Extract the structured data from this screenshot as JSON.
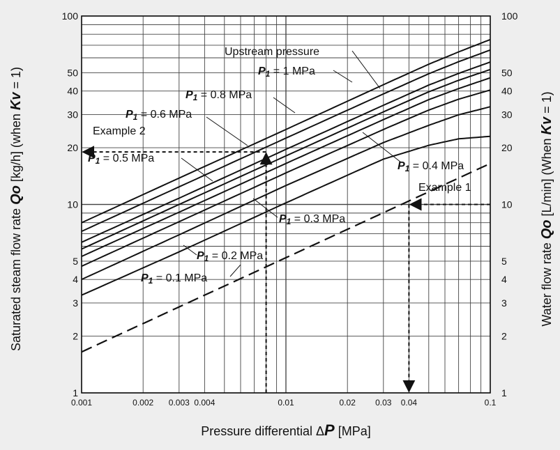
{
  "chart_data": {
    "type": "line",
    "xscale": "log",
    "yscale": "log",
    "xlim": [
      0.001,
      0.1
    ],
    "ylim": [
      1,
      100
    ],
    "grid": true,
    "x_ticks": [
      "0.001",
      "0.002",
      "0.003",
      "0.004",
      "0.01",
      "0.02",
      "0.03",
      "0.04",
      "0.1"
    ],
    "x_tick_values": [
      0.001,
      0.002,
      0.003,
      0.004,
      0.01,
      0.02,
      0.03,
      0.04,
      0.1
    ],
    "y_ticks": [
      "1",
      "2",
      "3",
      "4",
      "5",
      "10",
      "20",
      "30",
      "40",
      "50",
      "100"
    ],
    "y_tick_values": [
      1,
      2,
      3,
      4,
      5,
      10,
      20,
      30,
      40,
      50,
      100
    ],
    "xlabel": {
      "pre": "Pressure differential ",
      "delta": "Δ",
      "sym": "P",
      "post": " [MPa]"
    },
    "ylabel_left": {
      "pre": "Saturated steam flow rate ",
      "sym": "Qo",
      "mid": " [kg/h] (when ",
      "sym2": "Kv",
      "post": " = 1)"
    },
    "ylabel_right": {
      "pre": "Water flow rate ",
      "sym": "Qo",
      "mid": " [L/min] (When ",
      "sym2": "Kv",
      "post": " = 1)"
    },
    "series": [
      {
        "name": "P1 = 0.1 MPa",
        "style": "solid",
        "x": [
          0.001,
          0.003,
          0.01,
          0.02,
          0.03,
          0.05,
          0.07,
          0.1
        ],
        "y": [
          3.3,
          5.6,
          10.2,
          14.3,
          17.4,
          20.6,
          22.3,
          23.0
        ]
      },
      {
        "name": "P1 = 0.2 MPa",
        "style": "solid",
        "x": [
          0.001,
          0.003,
          0.01,
          0.03,
          0.05,
          0.07,
          0.1
        ],
        "y": [
          4.0,
          6.9,
          12.6,
          21.3,
          26.3,
          29.9,
          33.0
        ]
      },
      {
        "name": "P1 = 0.3 MPa",
        "style": "solid",
        "x": [
          0.001,
          0.003,
          0.01,
          0.03,
          0.05,
          0.07,
          0.1
        ],
        "y": [
          4.7,
          8.1,
          14.7,
          25.0,
          31.7,
          36.2,
          40.5
        ]
      },
      {
        "name": "P1 = 0.4 MPa",
        "style": "solid",
        "x": [
          0.001,
          0.003,
          0.01,
          0.03,
          0.05,
          0.07,
          0.1
        ],
        "y": [
          5.3,
          9.1,
          16.5,
          28.2,
          36.0,
          41.2,
          47.0
        ]
      },
      {
        "name": "P1 = 0.5 MPa",
        "style": "solid",
        "x": [
          0.001,
          0.003,
          0.01,
          0.03,
          0.05,
          0.07,
          0.1
        ],
        "y": [
          5.8,
          10.0,
          18.1,
          31.0,
          39.6,
          45.6,
          52.0
        ]
      },
      {
        "name": "P1 = 0.6 MPa",
        "style": "solid",
        "x": [
          0.001,
          0.003,
          0.01,
          0.03,
          0.05,
          0.07,
          0.1
        ],
        "y": [
          6.3,
          10.8,
          19.6,
          33.6,
          43.0,
          49.6,
          57.0
        ]
      },
      {
        "name": "P1 = 0.8 MPa",
        "style": "solid",
        "x": [
          0.001,
          0.003,
          0.01,
          0.03,
          0.05,
          0.07,
          0.1
        ],
        "y": [
          7.2,
          12.4,
          22.5,
          38.6,
          49.4,
          57.2,
          66.0
        ]
      },
      {
        "name": "P1 = 1 MPa",
        "style": "solid",
        "x": [
          0.001,
          0.003,
          0.01,
          0.03,
          0.05,
          0.07,
          0.1
        ],
        "y": [
          8.0,
          13.8,
          25.0,
          43.2,
          55.5,
          64.5,
          75.0
        ]
      },
      {
        "name": "Water",
        "style": "dashed",
        "x": [
          0.001,
          0.1
        ],
        "y": [
          1.65,
          16.5
        ]
      }
    ],
    "annotations": [
      {
        "id": "upstream",
        "text": "Upstream pressure"
      },
      {
        "id": "p1_1",
        "sym": "P",
        "sub": "1",
        "text": " = 1 MPa"
      },
      {
        "id": "p1_08",
        "sym": "P",
        "sub": "1",
        "text": " = 0.8 MPa"
      },
      {
        "id": "p1_06",
        "sym": "P",
        "sub": "1",
        "text": " = 0.6 MPa"
      },
      {
        "id": "p1_05",
        "sym": "P",
        "sub": "1",
        "text": " = 0.5 MPa"
      },
      {
        "id": "p1_04",
        "sym": "P",
        "sub": "1",
        "text": " = 0.4 MPa"
      },
      {
        "id": "p1_03",
        "sym": "P",
        "sub": "1",
        "text": " = 0.3 MPa"
      },
      {
        "id": "p1_02",
        "sym": "P",
        "sub": "1",
        "text": " = 0.2 MPa"
      },
      {
        "id": "p1_01",
        "sym": "P",
        "sub": "1",
        "text": " = 0.1 MPa"
      },
      {
        "id": "ex2",
        "text": "Example 2"
      },
      {
        "id": "ex1",
        "text": "Example 1"
      }
    ],
    "examples": [
      {
        "name": "Example 1",
        "x": 0.04,
        "y": 10,
        "from": "right"
      },
      {
        "name": "Example 2",
        "x": 0.008,
        "y": 19,
        "from": "bottom"
      }
    ]
  }
}
